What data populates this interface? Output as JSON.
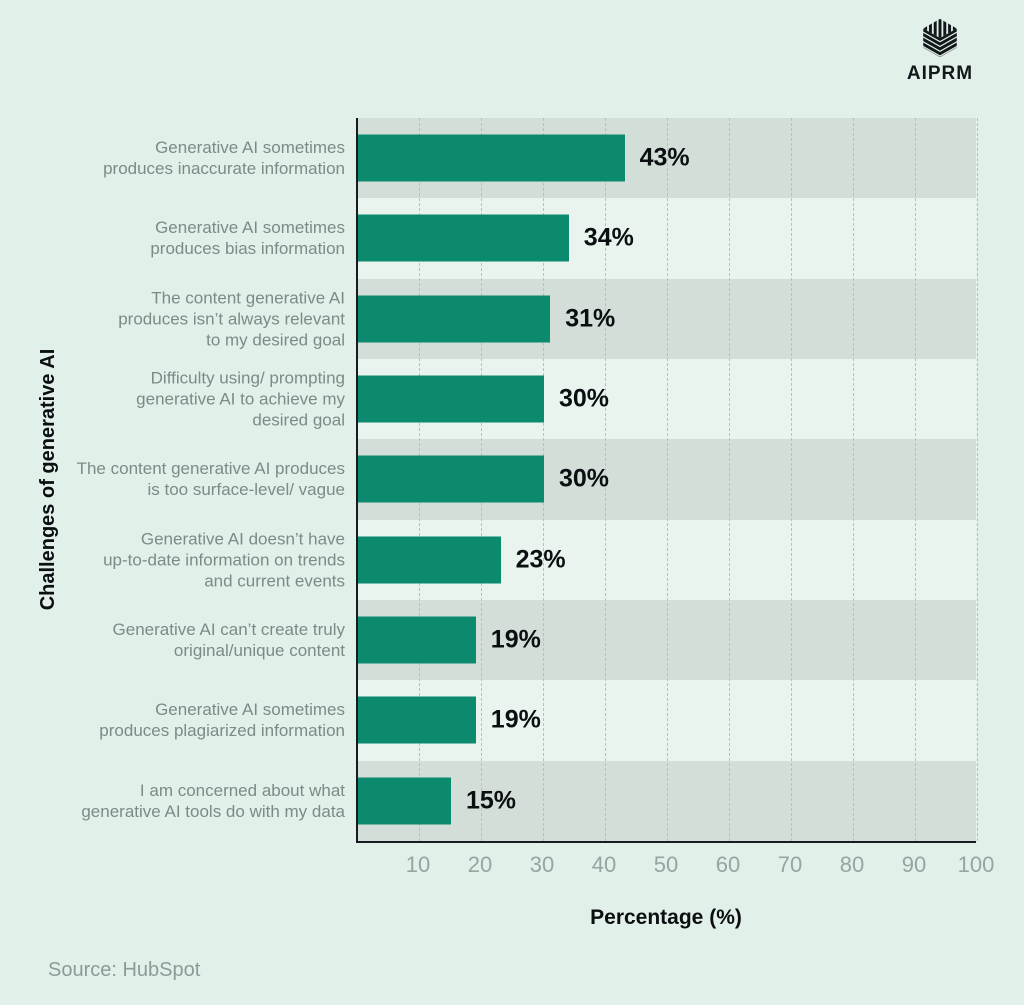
{
  "brand": {
    "name": "AIPRM",
    "icon": "aiprm-striped-cube-logo"
  },
  "chart_data": {
    "type": "bar",
    "orientation": "horizontal",
    "title": "",
    "xlabel": "Percentage (%)",
    "ylabel": "Challenges of generative AI",
    "xlim": [
      0,
      100
    ],
    "xticks": [
      10,
      20,
      30,
      40,
      50,
      60,
      70,
      80,
      90,
      100
    ],
    "grid": "vertical-dashed",
    "legend": "none",
    "categories": [
      [
        "Generative AI sometimes",
        "produces inaccurate information"
      ],
      [
        "Generative AI sometimes",
        "produces bias information"
      ],
      [
        "The content generative AI",
        "produces isn’t always relevant",
        "to my desired goal"
      ],
      [
        "Difficulty using/ prompting",
        "generative AI to achieve my",
        "desired goal"
      ],
      [
        "The content generative AI produces",
        "is too surface-level/ vague"
      ],
      [
        "Generative AI doesn’t have",
        "up-to-date information on trends",
        "and current events"
      ],
      [
        "Generative AI can’t create truly",
        "original/unique content"
      ],
      [
        "Generative AI sometimes",
        "produces plagiarized information"
      ],
      [
        "I am concerned about what",
        "generative AI tools do with my data"
      ]
    ],
    "values": [
      43,
      34,
      31,
      30,
      30,
      23,
      19,
      19,
      15
    ],
    "value_labels": [
      "43%",
      "34%",
      "31%",
      "30%",
      "30%",
      "23%",
      "19%",
      "19%",
      "15%"
    ],
    "colors": {
      "bar": "#0c8a6e",
      "band_dark": "#d3ded9",
      "band_light": "#e9f4ef",
      "background": "#e2f0ea",
      "axis": "#161c1f",
      "category_text": "#7b8b86",
      "tick_text": "#95a5a0",
      "value_text": "#0b0f11"
    }
  },
  "source": {
    "label": "Source: HubSpot"
  }
}
